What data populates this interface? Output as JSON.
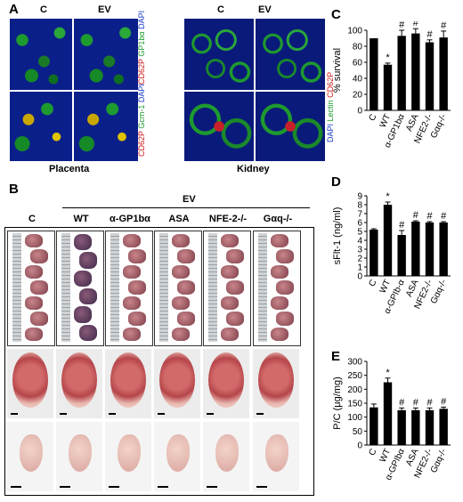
{
  "panels": {
    "A": {
      "letter": "A",
      "col_c": "C",
      "col_ev": "EV",
      "placenta_stain_top": [
        "CD62P",
        "GP1bα",
        "DAPI"
      ],
      "placenta_stain_bottom": [
        "CD62P",
        "Gcm-1",
        "DAPI"
      ],
      "kidney_stain": [
        "DAPI",
        "Lectin",
        "CD62P"
      ],
      "placenta_label": "Placenta",
      "kidney_label": "Kidney"
    },
    "B": {
      "letter": "B",
      "ev_header": "EV",
      "groups": [
        "C",
        "WT",
        "α-GP1bα",
        "ASA",
        "NFE-2-/-",
        "Gαq-/-"
      ]
    },
    "C": {
      "letter": "C",
      "chart_data": {
        "type": "bar",
        "ylabel": "% survival",
        "ylim": [
          0,
          100
        ],
        "yticks": [
          0,
          20,
          40,
          60,
          80,
          100
        ],
        "categories": [
          "C",
          "WT",
          "α-GP1bα",
          "ASA",
          "NFE2-/-",
          "Gαq-/-"
        ],
        "values": [
          90,
          57,
          93,
          96,
          85,
          91
        ],
        "errors": [
          0,
          2,
          7,
          6,
          3,
          8
        ],
        "marks": [
          "",
          "*",
          "#",
          "#",
          "#",
          "#"
        ]
      }
    },
    "D": {
      "letter": "D",
      "chart_data": {
        "type": "bar",
        "ylabel": "sFlt-1 (ng/ml)",
        "ylim": [
          0,
          9
        ],
        "yticks": [
          0,
          1,
          2,
          3,
          4,
          5,
          6,
          7,
          8,
          9
        ],
        "categories": [
          "C",
          "WT",
          "α-GPIb-α",
          "ASA",
          "NFE2-/-",
          "Gαq-/-"
        ],
        "values": [
          5.2,
          8.0,
          4.6,
          6.1,
          6.0,
          6.0
        ],
        "errors": [
          0.1,
          0.3,
          0.5,
          0.1,
          0.1,
          0.1
        ],
        "marks": [
          "",
          "*",
          "#",
          "#",
          "#",
          "#"
        ]
      }
    },
    "E": {
      "letter": "E",
      "chart_data": {
        "type": "bar",
        "ylabel": "P/C (μg/mg)",
        "ylim": [
          0,
          300
        ],
        "yticks": [
          0,
          50,
          100,
          150,
          200,
          250,
          300
        ],
        "categories": [
          "C",
          "WT",
          "α-GPIbα",
          "ASA",
          "NFE2-/-",
          "Gαq-/-"
        ],
        "values": [
          135,
          225,
          125,
          125,
          125,
          130
        ],
        "errors": [
          12,
          15,
          8,
          8,
          8,
          6
        ],
        "marks": [
          "",
          "*",
          "#",
          "#",
          "#",
          "#"
        ]
      }
    }
  },
  "colors": {
    "red": "#d01818",
    "green": "#1e9b2e",
    "blue": "#1a3fc8",
    "bar": "#000000"
  }
}
